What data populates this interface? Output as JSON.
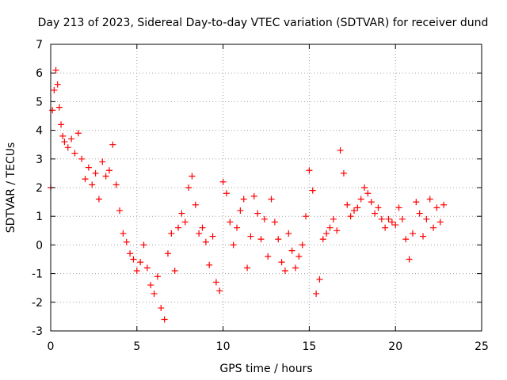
{
  "chart_data": {
    "type": "scatter",
    "title": "Day 213 of 2023, Sidereal Day-to-day VTEC variation (SDTVAR) for receiver dund",
    "xlabel": "GPS time / hours",
    "ylabel": "SDTVAR / TECUs",
    "xlim": [
      0,
      25
    ],
    "ylim": [
      -3,
      7
    ],
    "xticks": [
      0,
      5,
      10,
      15,
      20,
      25
    ],
    "yticks": [
      -3,
      -2,
      -1,
      0,
      1,
      2,
      3,
      4,
      5,
      6,
      7
    ],
    "grid": true,
    "marker": "+",
    "color": "#ff0000",
    "series": [
      {
        "name": "SDTVAR",
        "x": [
          0.0,
          0.1,
          0.2,
          0.3,
          0.4,
          0.5,
          0.6,
          0.7,
          0.8,
          1.0,
          1.2,
          1.4,
          1.6,
          1.8,
          2.0,
          2.2,
          2.4,
          2.6,
          2.8,
          3.0,
          3.2,
          3.4,
          3.6,
          3.8,
          4.0,
          4.2,
          4.4,
          4.6,
          4.8,
          5.0,
          5.2,
          5.4,
          5.6,
          5.8,
          6.0,
          6.2,
          6.4,
          6.6,
          6.8,
          7.0,
          7.2,
          7.4,
          7.6,
          7.8,
          8.0,
          8.2,
          8.4,
          8.6,
          8.8,
          9.0,
          9.2,
          9.4,
          9.6,
          9.8,
          10.0,
          10.2,
          10.4,
          10.6,
          10.8,
          11.0,
          11.2,
          11.4,
          11.6,
          11.8,
          12.0,
          12.2,
          12.4,
          12.6,
          12.8,
          13.0,
          13.2,
          13.4,
          13.6,
          13.8,
          14.0,
          14.2,
          14.4,
          14.6,
          14.8,
          15.0,
          15.2,
          15.4,
          15.6,
          15.8,
          16.0,
          16.2,
          16.4,
          16.6,
          16.8,
          17.0,
          17.2,
          17.4,
          17.6,
          17.8,
          18.0,
          18.2,
          18.4,
          18.6,
          18.8,
          19.0,
          19.2,
          19.4,
          19.6,
          19.8,
          20.0,
          20.2,
          20.4,
          20.6,
          20.8,
          21.0,
          21.2,
          21.4,
          21.6,
          21.8,
          22.0,
          22.2,
          22.4,
          22.6,
          22.8
        ],
        "y": [
          2.0,
          4.7,
          5.4,
          6.1,
          5.6,
          4.8,
          4.2,
          3.8,
          3.6,
          3.4,
          3.7,
          3.2,
          3.9,
          3.0,
          2.3,
          2.7,
          2.1,
          2.5,
          1.6,
          2.9,
          2.4,
          2.6,
          3.5,
          2.1,
          1.2,
          0.4,
          0.1,
          -0.3,
          -0.5,
          -0.9,
          -0.6,
          0.0,
          -0.8,
          -1.4,
          -1.7,
          -1.1,
          -2.2,
          -2.6,
          -0.3,
          0.4,
          -0.9,
          0.6,
          1.1,
          0.8,
          2.0,
          2.4,
          1.4,
          0.4,
          0.6,
          0.1,
          -0.7,
          0.3,
          -1.3,
          -1.6,
          2.2,
          1.8,
          0.8,
          0.0,
          0.6,
          1.2,
          1.6,
          -0.8,
          0.3,
          1.7,
          1.1,
          0.2,
          0.9,
          -0.4,
          1.6,
          0.8,
          0.2,
          -0.6,
          -0.9,
          0.4,
          -0.2,
          -0.8,
          -0.4,
          0.0,
          1.0,
          2.6,
          1.9,
          -1.7,
          -1.2,
          0.2,
          0.4,
          0.6,
          0.9,
          0.5,
          3.3,
          2.5,
          1.4,
          1.0,
          1.2,
          1.3,
          1.6,
          2.0,
          1.8,
          1.5,
          1.1,
          1.3,
          0.9,
          0.6,
          0.9,
          0.8,
          0.7,
          1.3,
          0.9,
          0.2,
          -0.5,
          0.4,
          1.5,
          1.1,
          0.3,
          0.9,
          1.6,
          0.6,
          1.3,
          0.8,
          1.4
        ]
      }
    ]
  }
}
